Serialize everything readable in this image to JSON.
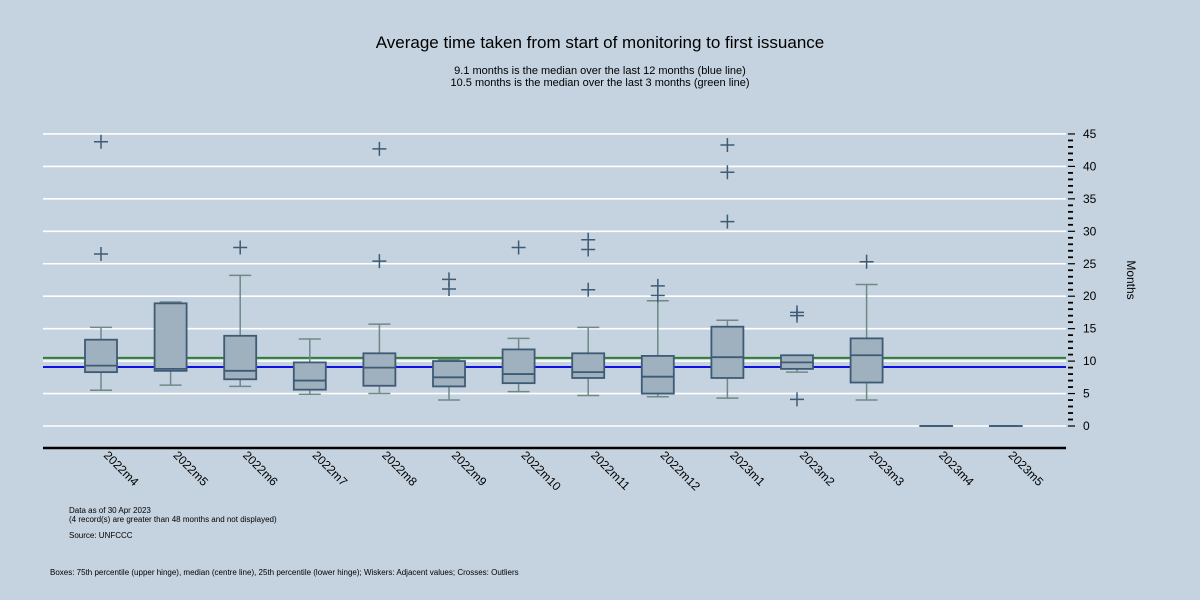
{
  "chart_data": {
    "type": "box",
    "title": "Average time taken from start of monitoring to first issuance",
    "subtitle_lines": [
      "9.1 months is the median over the last 12 months (blue line)",
      "10.5 months is the median over the last 3 months (green line)"
    ],
    "ylabel": "Months",
    "ylim": [
      -3,
      46
    ],
    "yticks": [
      0,
      5,
      10,
      15,
      20,
      25,
      30,
      35,
      40,
      45
    ],
    "reference_lines": [
      {
        "name": "median last 12 months",
        "value": 9.1,
        "color": "#1010e0"
      },
      {
        "name": "median last 3 months",
        "value": 10.5,
        "color": "#2e7d32"
      }
    ],
    "categories": [
      "2022m4",
      "2022m5",
      "2022m6",
      "2022m7",
      "2022m8",
      "2022m9",
      "2022m10",
      "2022m11",
      "2022m12",
      "2023m1",
      "2023m2",
      "2023m3",
      "2023m4",
      "2023m5"
    ],
    "boxes": [
      {
        "q1": 8.3,
        "median": 9.3,
        "q3": 13.3,
        "whisker_low": 5.5,
        "whisker_high": 15.2,
        "outliers": [
          26.5,
          43.8
        ]
      },
      {
        "q1": 8.5,
        "median": 8.8,
        "q3": 18.9,
        "whisker_low": 6.3,
        "whisker_high": 19.1,
        "outliers": []
      },
      {
        "q1": 7.2,
        "median": 8.5,
        "q3": 13.9,
        "whisker_low": 6.1,
        "whisker_high": 23.2,
        "outliers": [
          27.5
        ]
      },
      {
        "q1": 5.6,
        "median": 7.0,
        "q3": 9.8,
        "whisker_low": 4.9,
        "whisker_high": 13.4,
        "outliers": []
      },
      {
        "q1": 6.2,
        "median": 9.0,
        "q3": 11.2,
        "whisker_low": 5.0,
        "whisker_high": 15.7,
        "outliers": [
          25.4,
          42.7
        ]
      },
      {
        "q1": 6.1,
        "median": 7.5,
        "q3": 10.0,
        "whisker_low": 4.0,
        "whisker_high": 10.2,
        "outliers": [
          21.1,
          22.6
        ]
      },
      {
        "q1": 6.6,
        "median": 8.0,
        "q3": 11.8,
        "whisker_low": 5.3,
        "whisker_high": 13.5,
        "outliers": [
          27.5
        ]
      },
      {
        "q1": 7.4,
        "median": 8.3,
        "q3": 11.2,
        "whisker_low": 4.7,
        "whisker_high": 15.2,
        "outliers": [
          21.0,
          27.2,
          28.7
        ]
      },
      {
        "q1": 5.0,
        "median": 7.6,
        "q3": 10.8,
        "whisker_low": 4.5,
        "whisker_high": 19.3,
        "outliers": [
          20.1,
          21.6
        ]
      },
      {
        "q1": 7.4,
        "median": 10.6,
        "q3": 15.3,
        "whisker_low": 4.3,
        "whisker_high": 16.3,
        "outliers": [
          31.5,
          39.1,
          43.3
        ]
      },
      {
        "q1": 8.8,
        "median": 9.8,
        "q3": 10.9,
        "whisker_low": 8.3,
        "whisker_high": 10.9,
        "outliers": [
          4.1,
          17.0,
          17.5
        ]
      },
      {
        "q1": 6.7,
        "median": 10.9,
        "q3": 13.5,
        "whisker_low": 4.0,
        "whisker_high": 21.8,
        "outliers": [
          25.3
        ]
      },
      {
        "q1": 0,
        "median": 0,
        "q3": 0,
        "whisker_low": 0,
        "whisker_high": 0,
        "outliers": []
      },
      {
        "q1": 0,
        "median": 0,
        "q3": 0,
        "whisker_low": 0,
        "whisker_high": 0,
        "outliers": []
      }
    ],
    "notes": [
      "Data as of 30 Apr 2023",
      "(4 record(s) are greater than 48 months and not displayed)",
      "Source: UNFCCC",
      "Boxes: 75th percentile (upper hinge), median (centre line), 25th percentile (lower hinge); Wiskers: Adjacent values; Crosses: Outliers"
    ],
    "colors": {
      "background": "#c5d2df",
      "box_fill": "#9fb0bf",
      "box_stroke": "#3e5b76",
      "whisker": "#6f8a86",
      "outlier": "#3e5b76",
      "grid": "#ffffff"
    }
  }
}
